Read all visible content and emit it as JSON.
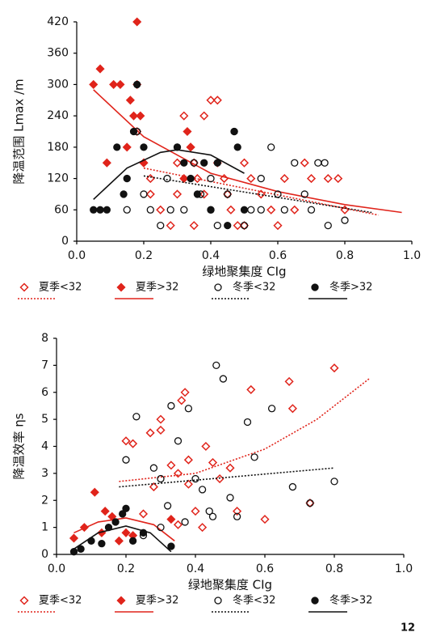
{
  "page_number": "12",
  "chart_data": [
    {
      "type": "scatter",
      "ylabel": "降温范围 Lmax /m",
      "xlabel": "绿地聚集度 CIg",
      "xlim": [
        0,
        1
      ],
      "ylim": [
        0,
        420
      ],
      "xticks": [
        {
          "value": 0,
          "label": "0.0"
        },
        {
          "value": 0.2,
          "label": "0.2"
        },
        {
          "value": 0.4,
          "label": "0.4"
        },
        {
          "value": 0.6,
          "label": "0.6"
        },
        {
          "value": 0.8,
          "label": "0.8"
        },
        {
          "value": 1,
          "label": "1.0"
        }
      ],
      "yticks": [
        0,
        60,
        120,
        180,
        240,
        300,
        360,
        420
      ],
      "series": [
        {
          "name": "夏季<32",
          "color": "#e0241b",
          "marker": "diamond",
          "filled": false,
          "x": [
            0.18,
            0.2,
            0.22,
            0.22,
            0.25,
            0.28,
            0.3,
            0.3,
            0.32,
            0.34,
            0.35,
            0.36,
            0.38,
            0.4,
            0.42,
            0.42,
            0.44,
            0.45,
            0.46,
            0.48,
            0.5,
            0.52,
            0.55,
            0.58,
            0.6,
            0.62,
            0.65,
            0.68,
            0.7,
            0.75,
            0.78,
            0.8,
            0.35,
            0.38,
            0.5
          ],
          "values": [
            210,
            150,
            120,
            90,
            60,
            30,
            90,
            150,
            240,
            180,
            150,
            120,
            240,
            270,
            270,
            150,
            120,
            90,
            60,
            30,
            150,
            120,
            90,
            60,
            30,
            120,
            60,
            150,
            120,
            120,
            120,
            60,
            30,
            90,
            30
          ],
          "trend": {
            "dash": "dotted",
            "x": [
              0.2,
              0.9
            ],
            "values": [
              140,
              50
            ]
          }
        },
        {
          "name": "夏季>32",
          "color": "#e0241b",
          "marker": "diamond",
          "filled": true,
          "x": [
            0.05,
            0.07,
            0.09,
            0.11,
            0.13,
            0.15,
            0.16,
            0.17,
            0.18,
            0.19,
            0.2,
            0.33,
            0.34,
            0.32,
            0.18
          ],
          "values": [
            300,
            330,
            150,
            300,
            300,
            180,
            270,
            240,
            420,
            240,
            150,
            210,
            180,
            120,
            300
          ],
          "trend": {
            "dash": "solid",
            "x": [
              0.05,
              0.2,
              0.4,
              0.6,
              0.8,
              0.97
            ],
            "values": [
              290,
              200,
              130,
              95,
              70,
              55
            ]
          }
        },
        {
          "name": "冬季<32",
          "color": "#111111",
          "marker": "circle",
          "filled": false,
          "x": [
            0.15,
            0.18,
            0.2,
            0.22,
            0.25,
            0.27,
            0.3,
            0.32,
            0.35,
            0.37,
            0.4,
            0.42,
            0.45,
            0.47,
            0.5,
            0.52,
            0.55,
            0.58,
            0.6,
            0.62,
            0.65,
            0.68,
            0.7,
            0.72,
            0.74,
            0.75,
            0.8,
            0.28,
            0.4,
            0.55
          ],
          "values": [
            60,
            210,
            90,
            60,
            30,
            120,
            180,
            60,
            150,
            90,
            60,
            30,
            90,
            210,
            30,
            60,
            120,
            180,
            90,
            60,
            150,
            90,
            60,
            150,
            150,
            30,
            40,
            60,
            120,
            60
          ],
          "trend": {
            "dash": "dotted",
            "x": [
              0.2,
              0.88
            ],
            "values": [
              125,
              55
            ]
          }
        },
        {
          "name": "冬季>32",
          "color": "#111111",
          "marker": "circle",
          "filled": true,
          "x": [
            0.05,
            0.07,
            0.09,
            0.12,
            0.14,
            0.15,
            0.17,
            0.18,
            0.2,
            0.3,
            0.32,
            0.34,
            0.36,
            0.38,
            0.4,
            0.42,
            0.47,
            0.48,
            0.5,
            0.45
          ],
          "values": [
            60,
            60,
            60,
            180,
            90,
            120,
            210,
            300,
            180,
            180,
            150,
            120,
            90,
            150,
            60,
            150,
            210,
            180,
            60,
            30
          ],
          "trend": {
            "dash": "solid",
            "x": [
              0.05,
              0.15,
              0.25,
              0.3,
              0.4,
              0.5
            ],
            "values": [
              80,
              140,
              170,
              175,
              165,
              130
            ]
          }
        }
      ]
    },
    {
      "type": "scatter",
      "ylabel": "降温效率 ηs",
      "xlabel": "绿地聚集度 CIg",
      "xlim": [
        0,
        1
      ],
      "ylim": [
        0,
        8
      ],
      "xticks": [
        {
          "value": 0,
          "label": "0.0"
        },
        {
          "value": 0.2,
          "label": "0.2"
        },
        {
          "value": 0.4,
          "label": "0.4"
        },
        {
          "value": 0.6,
          "label": "0.6"
        },
        {
          "value": 0.8,
          "label": "0.8"
        },
        {
          "value": 1,
          "label": "1.0"
        }
      ],
      "yticks": [
        0,
        1,
        2,
        3,
        4,
        5,
        6,
        7,
        8
      ],
      "series": [
        {
          "name": "夏季<32",
          "color": "#e0241b",
          "marker": "diamond",
          "filled": false,
          "x": [
            0.2,
            0.22,
            0.25,
            0.27,
            0.28,
            0.3,
            0.3,
            0.33,
            0.35,
            0.36,
            0.37,
            0.38,
            0.4,
            0.42,
            0.45,
            0.47,
            0.5,
            0.52,
            0.56,
            0.6,
            0.67,
            0.68,
            0.73,
            0.8,
            0.35,
            0.43,
            0.38
          ],
          "values": [
            4.2,
            4.1,
            1.5,
            4.5,
            2.5,
            4.6,
            5.0,
            3.3,
            3.0,
            5.7,
            6.0,
            2.6,
            1.6,
            1.0,
            3.4,
            2.8,
            3.2,
            1.6,
            6.1,
            1.3,
            6.4,
            5.4,
            1.9,
            6.9,
            1.1,
            4.0,
            3.5
          ],
          "trend": {
            "dash": "dotted",
            "x": [
              0.18,
              0.4,
              0.6,
              0.75,
              0.9
            ],
            "values": [
              2.7,
              3.0,
              3.9,
              5.0,
              6.5
            ]
          }
        },
        {
          "name": "夏季>32",
          "color": "#e0241b",
          "marker": "diamond",
          "filled": true,
          "x": [
            0.05,
            0.08,
            0.11,
            0.13,
            0.14,
            0.16,
            0.18,
            0.2,
            0.22,
            0.33
          ],
          "values": [
            0.6,
            1.0,
            2.3,
            0.8,
            1.6,
            1.4,
            0.5,
            0.8,
            0.7,
            1.3
          ],
          "trend": {
            "dash": "solid",
            "x": [
              0.05,
              0.12,
              0.2,
              0.28,
              0.34
            ],
            "values": [
              0.8,
              1.2,
              1.35,
              1.1,
              0.5
            ]
          }
        },
        {
          "name": "冬季<32",
          "color": "#111111",
          "marker": "circle",
          "filled": false,
          "x": [
            0.2,
            0.23,
            0.25,
            0.28,
            0.3,
            0.32,
            0.33,
            0.35,
            0.37,
            0.38,
            0.4,
            0.42,
            0.44,
            0.46,
            0.48,
            0.5,
            0.52,
            0.55,
            0.57,
            0.62,
            0.68,
            0.73,
            0.8,
            0.3,
            0.45
          ],
          "values": [
            3.5,
            5.1,
            0.7,
            3.2,
            2.8,
            1.8,
            5.5,
            4.2,
            1.2,
            5.4,
            2.8,
            2.4,
            1.6,
            7.0,
            6.5,
            2.1,
            1.4,
            4.9,
            3.6,
            5.4,
            2.5,
            1.9,
            2.7,
            1.0,
            1.4
          ],
          "trend": {
            "dash": "dotted",
            "x": [
              0.18,
              0.8
            ],
            "values": [
              2.5,
              3.2
            ]
          }
        },
        {
          "name": "冬季>32",
          "color": "#111111",
          "marker": "circle",
          "filled": true,
          "x": [
            0.05,
            0.07,
            0.1,
            0.13,
            0.15,
            0.17,
            0.19,
            0.2,
            0.22,
            0.25,
            0.33
          ],
          "values": [
            0.1,
            0.2,
            0.5,
            0.4,
            1.0,
            1.2,
            1.5,
            1.7,
            0.5,
            0.8,
            0.3
          ],
          "trend": {
            "dash": "solid",
            "x": [
              0.05,
              0.12,
              0.2,
              0.27,
              0.33
            ],
            "values": [
              0.2,
              0.8,
              1.05,
              0.8,
              0.1
            ]
          }
        }
      ]
    }
  ]
}
